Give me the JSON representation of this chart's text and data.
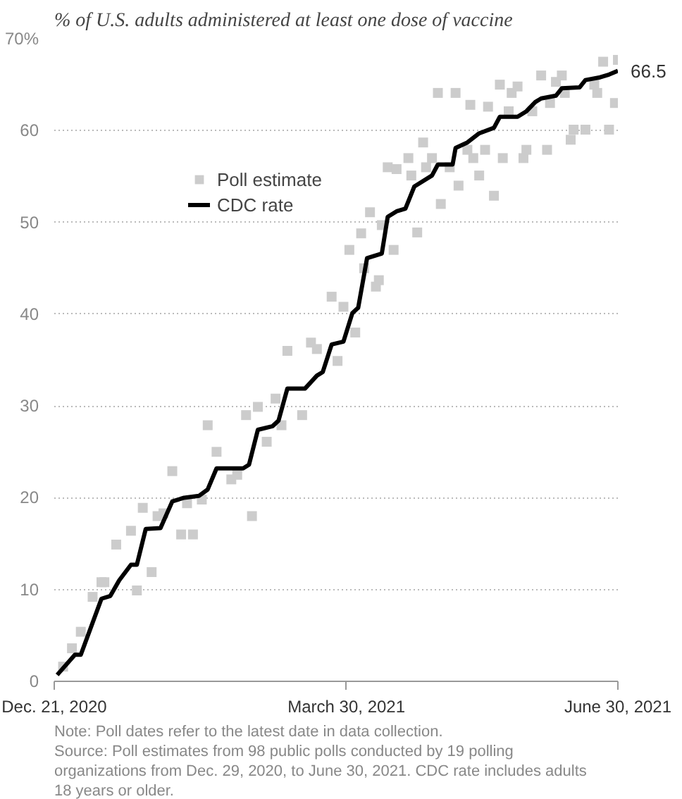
{
  "chart_data": {
    "type": "scatter",
    "title": "% of U.S. adults administered at least one dose of vaccine",
    "xlim": [
      "2020-12-21",
      "2021-06-30"
    ],
    "xticks": [
      {
        "value": "2020-12-21",
        "label": "Dec. 21, 2020"
      },
      {
        "value": "2021-03-30",
        "label": "March 30, 2021"
      },
      {
        "value": "2021-06-30",
        "label": "June 30, 2021"
      }
    ],
    "ylim": [
      0,
      70
    ],
    "yticks": [
      0,
      10,
      20,
      30,
      40,
      50,
      60,
      {
        "value": 70,
        "label": "70%"
      }
    ],
    "grid": "y",
    "legend": "top left",
    "series": [
      {
        "name": "Poll estimate",
        "marker": "square",
        "color": "#cccccc",
        "x": [
          "2020-12-24",
          "2020-12-27",
          "2020-12-30",
          "2021-01-03",
          "2021-01-06",
          "2021-01-07",
          "2021-01-11",
          "2021-01-16",
          "2021-01-18",
          "2021-01-20",
          "2021-01-23",
          "2021-01-25",
          "2021-01-27",
          "2021-01-30",
          "2021-02-02",
          "2021-02-04",
          "2021-02-06",
          "2021-02-09",
          "2021-02-11",
          "2021-02-14",
          "2021-02-19",
          "2021-02-21",
          "2021-02-24",
          "2021-02-26",
          "2021-02-28",
          "2021-03-03",
          "2021-03-06",
          "2021-03-08",
          "2021-03-10",
          "2021-03-15",
          "2021-03-18",
          "2021-03-20",
          "2021-03-25",
          "2021-03-27",
          "2021-03-29",
          "2021-03-31",
          "2021-04-02",
          "2021-04-04",
          "2021-04-05",
          "2021-04-07",
          "2021-04-09",
          "2021-04-10",
          "2021-04-11",
          "2021-04-13",
          "2021-04-15",
          "2021-04-16",
          "2021-04-20",
          "2021-04-21",
          "2021-04-23",
          "2021-04-25",
          "2021-04-26",
          "2021-04-28",
          "2021-04-30",
          "2021-05-01",
          "2021-05-04",
          "2021-05-06",
          "2021-05-07",
          "2021-05-10",
          "2021-05-11",
          "2021-05-12",
          "2021-05-14",
          "2021-05-16",
          "2021-05-17",
          "2021-05-19",
          "2021-05-21",
          "2021-05-22",
          "2021-05-24",
          "2021-05-25",
          "2021-05-27",
          "2021-05-29",
          "2021-05-30",
          "2021-06-01",
          "2021-06-04",
          "2021-06-06",
          "2021-06-07",
          "2021-06-09",
          "2021-06-11",
          "2021-06-12",
          "2021-06-14",
          "2021-06-15",
          "2021-06-19",
          "2021-06-22",
          "2021-06-23",
          "2021-06-25",
          "2021-06-27",
          "2021-06-29",
          "2021-06-30"
        ],
        "values": [
          1.6,
          3.6,
          5.4,
          9.2,
          10.8,
          10.8,
          14.9,
          16.4,
          9.9,
          18.9,
          11.9,
          18.0,
          18.3,
          22.9,
          16.0,
          19.4,
          16.0,
          19.8,
          27.9,
          25.0,
          22.0,
          22.5,
          29.0,
          18.0,
          29.9,
          26.1,
          30.8,
          27.9,
          36.0,
          29.0,
          36.9,
          36.2,
          41.9,
          34.9,
          40.8,
          47.0,
          38.0,
          48.8,
          45.0,
          51.1,
          43.0,
          43.7,
          49.7,
          56.0,
          47.0,
          55.8,
          57.0,
          55.1,
          48.9,
          58.7,
          56.0,
          57.0,
          64.1,
          52.0,
          56.0,
          64.1,
          54.0,
          57.9,
          62.8,
          57.0,
          55.1,
          57.9,
          62.6,
          52.9,
          65.0,
          57.0,
          62.1,
          64.1,
          64.8,
          57.0,
          57.9,
          62.1,
          66.0,
          57.9,
          63.0,
          65.3,
          66.0,
          64.1,
          59.0,
          60.1,
          60.1,
          65.0,
          64.1,
          67.5,
          60.1,
          63.0,
          67.7
        ]
      },
      {
        "name": "CDC rate",
        "type": "line",
        "line_style": "solid",
        "color": "#000000",
        "x": [
          "2020-12-22",
          "2020-12-28",
          "2020-12-30",
          "2021-01-06",
          "2021-01-09",
          "2021-01-12",
          "2021-01-16",
          "2021-01-18",
          "2021-01-21",
          "2021-01-26",
          "2021-01-30",
          "2021-02-03",
          "2021-02-08",
          "2021-02-11",
          "2021-02-14",
          "2021-02-23",
          "2021-02-25",
          "2021-02-28",
          "2021-03-05",
          "2021-03-07",
          "2021-03-10",
          "2021-03-16",
          "2021-03-20",
          "2021-03-22",
          "2021-03-25",
          "2021-03-29",
          "2021-04-01",
          "2021-04-03",
          "2021-04-06",
          "2021-04-11",
          "2021-04-13",
          "2021-04-16",
          "2021-04-19",
          "2021-04-22",
          "2021-04-28",
          "2021-04-30",
          "2021-05-05",
          "2021-05-06",
          "2021-05-10",
          "2021-05-14",
          "2021-05-19",
          "2021-05-21",
          "2021-05-27",
          "2021-05-30",
          "2021-06-02",
          "2021-06-04",
          "2021-06-09",
          "2021-06-11",
          "2021-06-17",
          "2021-06-19",
          "2021-06-24",
          "2021-06-27",
          "2021-06-30"
        ],
        "values": [
          0.7,
          2.9,
          2.9,
          9.0,
          9.3,
          11.0,
          12.7,
          12.7,
          16.6,
          16.7,
          19.6,
          20.0,
          20.2,
          20.9,
          23.2,
          23.2,
          23.6,
          27.4,
          27.8,
          28.4,
          31.9,
          31.9,
          33.3,
          33.7,
          36.7,
          37.0,
          40.1,
          40.7,
          46.1,
          46.6,
          50.6,
          51.2,
          51.5,
          53.9,
          55.1,
          56.3,
          56.3,
          58.1,
          58.7,
          59.7,
          60.3,
          61.5,
          61.5,
          62.1,
          63.1,
          63.5,
          63.8,
          64.6,
          64.7,
          65.5,
          65.8,
          66.1,
          66.5
        ]
      }
    ],
    "annotations": [
      {
        "text": "66.5",
        "x": "2021-06-30",
        "y": 66.5
      },
      "Note: Poll dates refer to the latest date in data collection.",
      "Source: Poll estimates from 98 public polls conducted by 19 polling organizations from Dec. 29, 2020, to June 30, 2021. CDC rate includes adults 18 years or older."
    ]
  }
}
